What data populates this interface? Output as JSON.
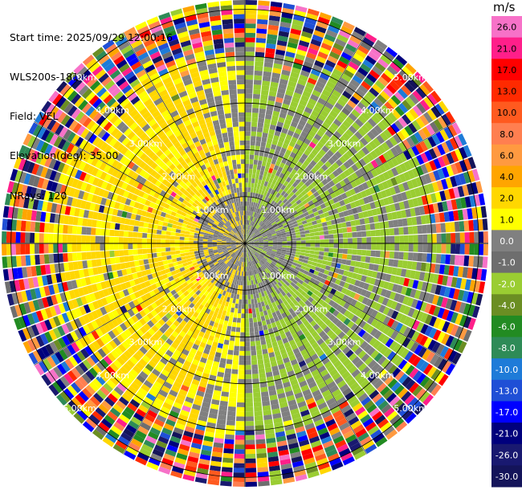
{
  "header": {
    "start_time": "Start time: 2025/09/29 12:00:16",
    "instrument": "WLS200s-181",
    "field": "Field: VEL",
    "elevation": "Elevation(deg): 35.00",
    "nrays": "NRays: 120"
  },
  "chart_data": {
    "type": "heatmap",
    "projection": "polar-ppi",
    "field": "VEL",
    "nrays": 120,
    "elevation_deg": 35.0,
    "ring_labels": [
      "1.00km",
      "2.00km",
      "3.00km",
      "4.00km",
      "5.00km"
    ],
    "ring_distances_km": [
      1,
      2,
      3,
      4,
      5
    ],
    "max_range_km": 5.2,
    "colorbar": {
      "unit": "m/s",
      "ticks": [
        "26.0",
        "21.0",
        "17.0",
        "13.0",
        "10.0",
        "8.0",
        "6.0",
        "4.0",
        "2.0",
        "1.0",
        "0.0",
        "-1.0",
        "-2.0",
        "-4.0",
        "-6.0",
        "-8.0",
        "-10.0",
        "-13.0",
        "-17.0",
        "-21.0",
        "-26.0",
        "-30.0"
      ],
      "colors": [
        "#f772c8",
        "#ff1f8a",
        "#ff0000",
        "#ff2a00",
        "#ff5a1f",
        "#ff7f50",
        "#ff9a40",
        "#ffa500",
        "#ffd700",
        "#ffff00",
        "#808080",
        "#6e6e6e",
        "#9acd32",
        "#6b8e23",
        "#228b22",
        "#2e8b57",
        "#1e7bd8",
        "#1f4fd6",
        "#0000ff",
        "#00007d",
        "#191970",
        "#14145a"
      ]
    },
    "pattern": {
      "near_zero_within_km": 1.1,
      "positive_side": "west",
      "negative_side": "east",
      "noise_beyond_km": 4.2
    }
  }
}
